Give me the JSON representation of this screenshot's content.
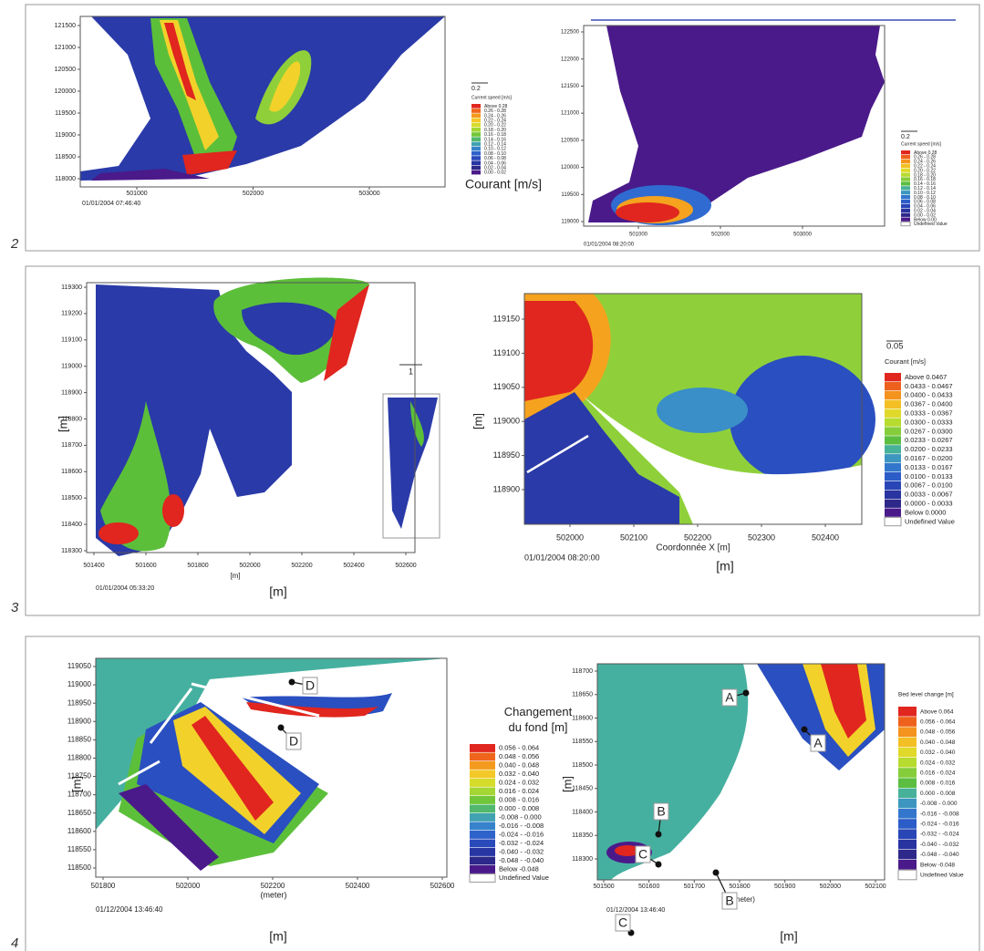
{
  "panels": [
    {
      "number": "2",
      "plots": [
        {
          "yticks": [
            "121500",
            "121000",
            "120500",
            "120000",
            "119500",
            "119000",
            "118500",
            "118000"
          ],
          "xticks": [
            "501000",
            "502000",
            "503000"
          ],
          "timestamp": "01/01/2004 07:46:40"
        },
        {
          "yticks": [
            "122500",
            "122000",
            "121500",
            "121000",
            "120500",
            "120000",
            "119500",
            "119000"
          ],
          "xticks": [
            "501000",
            "502000",
            "503000"
          ],
          "timestamp": "01/01/2004 08:20:00"
        }
      ],
      "legends": [
        {
          "scale": "0.2",
          "title": "Current speed [m/s]",
          "entries": [
            "Above 0.28",
            "0.26 - 0.28",
            "0.24 - 0.26",
            "0.22 - 0.24",
            "0.20 - 0.22",
            "0.18 - 0.20",
            "0.16 - 0.18",
            "0.14 - 0.16",
            "0.12 - 0.14",
            "0.10 - 0.12",
            "0.08 - 0.10",
            "0.06 - 0.08",
            "0.04 - 0.06",
            "0.02 - 0.04",
            "0.00 - 0.02"
          ],
          "caption": "Courant [m/s]"
        },
        {
          "scale": "0.2",
          "title": "Current speed [m/s]",
          "entries": [
            "Above 0.28",
            "0.26 - 0.28",
            "0.24 - 0.26",
            "0.22 - 0.24",
            "0.20 - 0.22",
            "0.18 - 0.20",
            "0.16 - 0.18",
            "0.14 - 0.16",
            "0.12 - 0.14",
            "0.10 - 0.12",
            "0.08 - 0.10",
            "0.06 - 0.08",
            "0.04 - 0.06",
            "0.02 - 0.04",
            "0.00 - 0.02",
            "Below 0.00",
            "Undefined Value"
          ]
        }
      ]
    },
    {
      "number": "3",
      "plots": [
        {
          "yticks": [
            "119300",
            "119200",
            "119100",
            "119000",
            "118900",
            "118800",
            "118700",
            "118600",
            "118500",
            "118400",
            "118300"
          ],
          "xticks": [
            "501400",
            "501600",
            "501800",
            "502000",
            "502200",
            "502400",
            "502600"
          ],
          "x_label": "[m]",
          "y_label": "[m]",
          "timestamp": "01/01/2004 05:33:20",
          "caption": "[m]",
          "scale": "1"
        },
        {
          "yticks": [
            "119150",
            "119100",
            "119050",
            "119000",
            "118950",
            "118900"
          ],
          "xticks": [
            "502000",
            "502100",
            "502200",
            "502300",
            "502400"
          ],
          "x_label": "Coordonnée X [m]",
          "y_label": "[m]",
          "timestamp": "01/01/2004 08:20:00",
          "caption": "[m]"
        }
      ],
      "legends": [
        {
          "scale": "0.05",
          "title": "Courant [m/s]",
          "entries": [
            "Above 0.0467",
            "0.0433 - 0.0467",
            "0.0400 - 0.0433",
            "0.0367 - 0.0400",
            "0.0333 - 0.0367",
            "0.0300 - 0.0333",
            "0.0267 - 0.0300",
            "0.0233 - 0.0267",
            "0.0200 - 0.0233",
            "0.0167 - 0.0200",
            "0.0133 - 0.0167",
            "0.0100 - 0.0133",
            "0.0067 - 0.0100",
            "0.0033 - 0.0067",
            "0.0000 - 0.0033",
            "Below 0.0000",
            "Undefined Value"
          ]
        }
      ]
    },
    {
      "number": "4",
      "plots": [
        {
          "yticks": [
            "119050",
            "119000",
            "118950",
            "118900",
            "118850",
            "118800",
            "118750",
            "118700",
            "118650",
            "118600",
            "118550",
            "118500"
          ],
          "xticks": [
            "501800",
            "502000",
            "502200",
            "502400",
            "502600"
          ],
          "x_label": "(meter)",
          "y_label": "[m]",
          "timestamp": "01/12/2004 13:46:40",
          "caption": "[m]",
          "callouts": [
            "D",
            "D"
          ]
        },
        {
          "yticks": [
            "118700",
            "118650",
            "118600",
            "118550",
            "118500",
            "118450",
            "118400",
            "118350",
            "118300"
          ],
          "xticks": [
            "501500",
            "501600",
            "501700",
            "501800",
            "501900",
            "502000",
            "502100"
          ],
          "x_label": "(meter)",
          "y_label": "[m]",
          "timestamp": "01/12/2004 13:46:40",
          "caption": "[m]",
          "callouts": [
            "A",
            "A",
            "B",
            "B",
            "C",
            "C"
          ]
        }
      ],
      "legends": [
        {
          "title": "Changement du fond [m]",
          "entries": [
            "0.056 - 0.064",
            "0.048 - 0.056",
            "0.040 - 0.048",
            "0.032 - 0.040",
            "0.024 - 0.032",
            "0.016 - 0.024",
            "0.008 - 0.016",
            "0.000 - 0.008",
            "-0.008 - 0.000",
            "-0.016 - -0.008",
            "-0.024 - -0.016",
            "-0.032 - -0.024",
            "-0.040 - -0.032",
            "-0.048 - -0.040",
            "Below -0.048",
            "Undefined Value"
          ]
        },
        {
          "title": "Bed level change [m]",
          "entries": [
            "Above 0.064",
            "0.056 - 0.064",
            "0.048 - 0.056",
            "0.040 - 0.048",
            "0.032 - 0.040",
            "0.024 - 0.032",
            "0.016 - 0.024",
            "0.008 - 0.016",
            "0.000 - 0.008",
            "-0.008 - 0.000",
            "-0.016 - -0.008",
            "-0.024 - -0.016",
            "-0.032 - -0.024",
            "-0.040 - -0.032",
            "-0.048 - -0.040",
            "Below -0.048",
            "Undefined Value"
          ]
        }
      ]
    }
  ]
}
